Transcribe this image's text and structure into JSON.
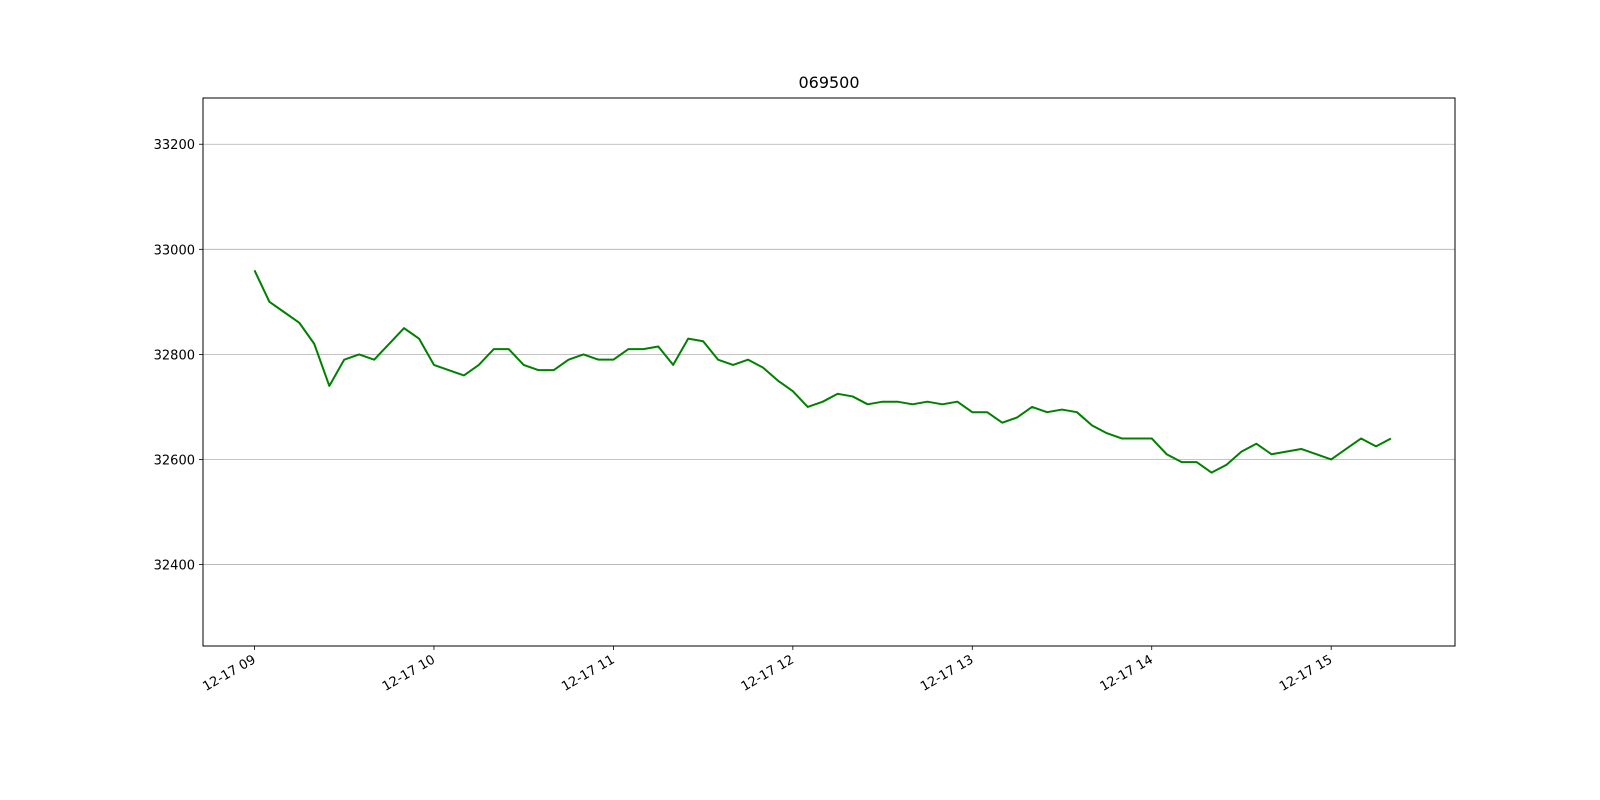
{
  "chart_data": {
    "type": "line",
    "title": "069500",
    "x": [
      9,
      9.083,
      9.167,
      9.25,
      9.333,
      9.417,
      9.5,
      9.583,
      9.667,
      9.75,
      9.833,
      9.917,
      10,
      10.083,
      10.167,
      10.25,
      10.333,
      10.417,
      10.5,
      10.583,
      10.667,
      10.75,
      10.833,
      10.917,
      11,
      11.083,
      11.167,
      11.25,
      11.333,
      11.417,
      11.5,
      11.583,
      11.667,
      11.75,
      11.833,
      11.917,
      12,
      12.083,
      12.167,
      12.25,
      12.333,
      12.417,
      12.5,
      12.583,
      12.667,
      12.75,
      12.833,
      12.917,
      13,
      13.083,
      13.167,
      13.25,
      13.333,
      13.417,
      13.5,
      13.583,
      13.667,
      13.75,
      13.833,
      13.917,
      14,
      14.083,
      14.167,
      14.25,
      14.333,
      14.417,
      14.5,
      14.583,
      14.667,
      14.75,
      14.833,
      14.917,
      15,
      15.083,
      15.167,
      15.25,
      15.333
    ],
    "series": [
      {
        "name": "069500",
        "color": "#008000",
        "values": [
          32960,
          32900,
          32880,
          32860,
          32820,
          32740,
          32790,
          32800,
          32790,
          32820,
          32850,
          32830,
          32780,
          32770,
          32760,
          32780,
          32810,
          32810,
          32780,
          32770,
          32770,
          32790,
          32800,
          32790,
          32790,
          32810,
          32810,
          32815,
          32780,
          32830,
          32825,
          32790,
          32780,
          32790,
          32775,
          32750,
          32730,
          32700,
          32710,
          32725,
          32720,
          32705,
          32710,
          32710,
          32705,
          32710,
          32705,
          32710,
          32690,
          32690,
          32670,
          32680,
          32700,
          32690,
          32695,
          32690,
          32665,
          32650,
          32640,
          32640,
          32640,
          32610,
          32595,
          32595,
          32575,
          32590,
          32615,
          32630,
          32610,
          32615,
          32620,
          32610,
          32600,
          32620,
          32640,
          32625,
          32640
        ]
      }
    ],
    "xlim": [
      8.713,
      15.69
    ],
    "xticks": [
      {
        "value": 9,
        "label": "12-17 09"
      },
      {
        "value": 10,
        "label": "12-17 10"
      },
      {
        "value": 11,
        "label": "12-17 11"
      },
      {
        "value": 12,
        "label": "12-17 12"
      },
      {
        "value": 13,
        "label": "12-17 13"
      },
      {
        "value": 14,
        "label": "12-17 14"
      },
      {
        "value": 15,
        "label": "12-17 15"
      }
    ],
    "ylim": [
      32245,
      33288
    ],
    "yticks": [
      32400,
      32600,
      32800,
      33000,
      33200
    ],
    "grid": true
  }
}
